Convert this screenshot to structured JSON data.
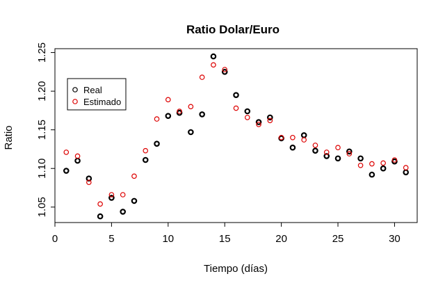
{
  "chart_data": {
    "type": "scatter",
    "title": "Ratio Dolar/Euro",
    "xlabel": "Tiempo (días)",
    "ylabel": "Ratio",
    "xlim": [
      0,
      32
    ],
    "ylim": [
      1.03,
      1.255
    ],
    "x_ticks": [
      0,
      5,
      10,
      15,
      20,
      25,
      30
    ],
    "y_ticks": [
      1.05,
      1.1,
      1.15,
      1.2,
      1.25
    ],
    "x_tick_labels": [
      "0",
      "5",
      "10",
      "15",
      "20",
      "25",
      "30"
    ],
    "y_tick_labels": [
      "1.05",
      "1.10",
      "1.15",
      "1.20",
      "1.25"
    ],
    "grid": false,
    "legend_position": "top-left",
    "series": [
      {
        "name": "Real",
        "color": "#000000",
        "marker": "open-circle",
        "points": [
          {
            "x": 1,
            "y": 1.097
          },
          {
            "x": 2,
            "y": 1.11
          },
          {
            "x": 3,
            "y": 1.087
          },
          {
            "x": 4,
            "y": 1.038
          },
          {
            "x": 5,
            "y": 1.062
          },
          {
            "x": 6,
            "y": 1.044
          },
          {
            "x": 7,
            "y": 1.058
          },
          {
            "x": 8,
            "y": 1.111
          },
          {
            "x": 9,
            "y": 1.132
          },
          {
            "x": 10,
            "y": 1.168
          },
          {
            "x": 11,
            "y": 1.172
          },
          {
            "x": 12,
            "y": 1.147
          },
          {
            "x": 13,
            "y": 1.17
          },
          {
            "x": 14,
            "y": 1.245
          },
          {
            "x": 15,
            "y": 1.225
          },
          {
            "x": 16,
            "y": 1.195
          },
          {
            "x": 17,
            "y": 1.174
          },
          {
            "x": 18,
            "y": 1.16
          },
          {
            "x": 19,
            "y": 1.166
          },
          {
            "x": 20,
            "y": 1.139
          },
          {
            "x": 21,
            "y": 1.127
          },
          {
            "x": 22,
            "y": 1.143
          },
          {
            "x": 23,
            "y": 1.123
          },
          {
            "x": 24,
            "y": 1.116
          },
          {
            "x": 25,
            "y": 1.113
          },
          {
            "x": 26,
            "y": 1.122
          },
          {
            "x": 27,
            "y": 1.113
          },
          {
            "x": 28,
            "y": 1.092
          },
          {
            "x": 29,
            "y": 1.1
          },
          {
            "x": 30,
            "y": 1.109
          },
          {
            "x": 31,
            "y": 1.095
          }
        ]
      },
      {
        "name": "Estimado",
        "color": "#dd0000",
        "marker": "open-circle",
        "points": [
          {
            "x": 1,
            "y": 1.121
          },
          {
            "x": 2,
            "y": 1.116
          },
          {
            "x": 3,
            "y": 1.082
          },
          {
            "x": 4,
            "y": 1.054
          },
          {
            "x": 5,
            "y": 1.066
          },
          {
            "x": 6,
            "y": 1.066
          },
          {
            "x": 7,
            "y": 1.09
          },
          {
            "x": 8,
            "y": 1.123
          },
          {
            "x": 9,
            "y": 1.164
          },
          {
            "x": 10,
            "y": 1.189
          },
          {
            "x": 11,
            "y": 1.174
          },
          {
            "x": 12,
            "y": 1.18
          },
          {
            "x": 13,
            "y": 1.218
          },
          {
            "x": 14,
            "y": 1.234
          },
          {
            "x": 15,
            "y": 1.228
          },
          {
            "x": 16,
            "y": 1.178
          },
          {
            "x": 17,
            "y": 1.166
          },
          {
            "x": 18,
            "y": 1.157
          },
          {
            "x": 19,
            "y": 1.162
          },
          {
            "x": 20,
            "y": 1.14
          },
          {
            "x": 21,
            "y": 1.14
          },
          {
            "x": 22,
            "y": 1.137
          },
          {
            "x": 23,
            "y": 1.13
          },
          {
            "x": 24,
            "y": 1.121
          },
          {
            "x": 25,
            "y": 1.127
          },
          {
            "x": 26,
            "y": 1.119
          },
          {
            "x": 27,
            "y": 1.104
          },
          {
            "x": 28,
            "y": 1.106
          },
          {
            "x": 29,
            "y": 1.107
          },
          {
            "x": 30,
            "y": 1.111
          },
          {
            "x": 31,
            "y": 1.101
          }
        ]
      }
    ]
  }
}
